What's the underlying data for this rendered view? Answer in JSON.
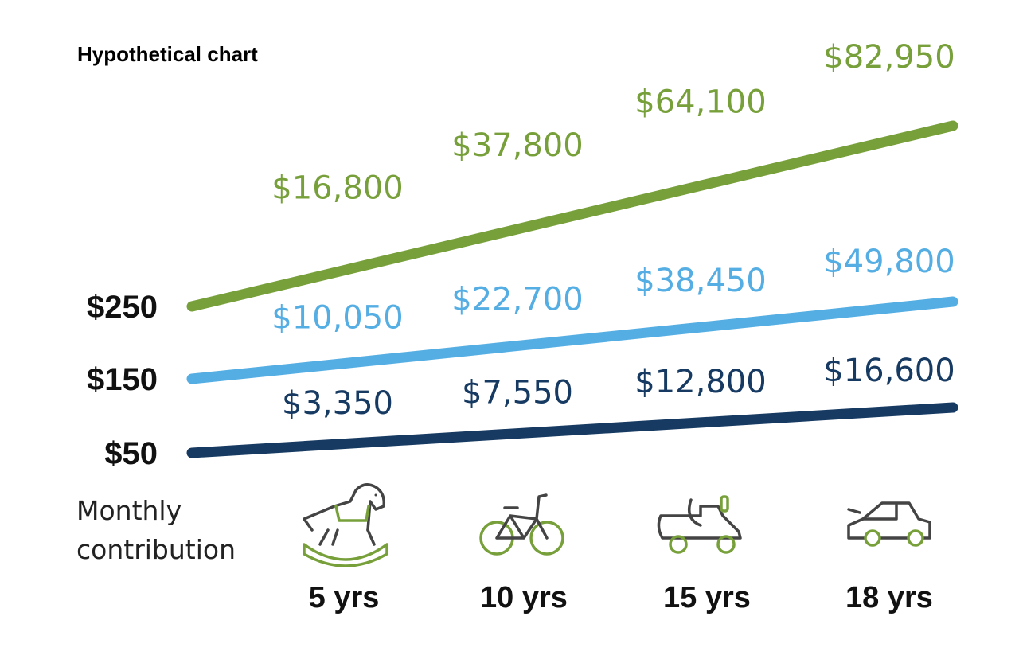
{
  "chart_data": {
    "type": "line",
    "title": "Hypothetical chart",
    "xlabel": "Monthly contribution",
    "ylabel": "",
    "categories": [
      "5 yrs",
      "10 yrs",
      "15 yrs",
      "18 yrs"
    ],
    "series": [
      {
        "name": "$250",
        "color": "#77A03A",
        "start": 0,
        "values": [
          16800,
          37800,
          64100,
          82950
        ],
        "labels": [
          "$16,800",
          "$37,800",
          "$64,100",
          "$82,950"
        ]
      },
      {
        "name": "$150",
        "color": "#55AEE3",
        "start": 0,
        "values": [
          10050,
          22700,
          38450,
          49800
        ],
        "labels": [
          "$10,050",
          "$22,700",
          "$38,450",
          "$49,800"
        ]
      },
      {
        "name": "$50",
        "color": "#163A62",
        "start": 0,
        "values": [
          3350,
          7550,
          12800,
          16600
        ],
        "labels": [
          "$3,350",
          "$7,550",
          "$12,800",
          "$16,600"
        ]
      }
    ],
    "icons": [
      "rocking-horse-icon",
      "bicycle-icon",
      "scooter-icon",
      "car-icon"
    ],
    "grid": false,
    "legend": "none"
  }
}
